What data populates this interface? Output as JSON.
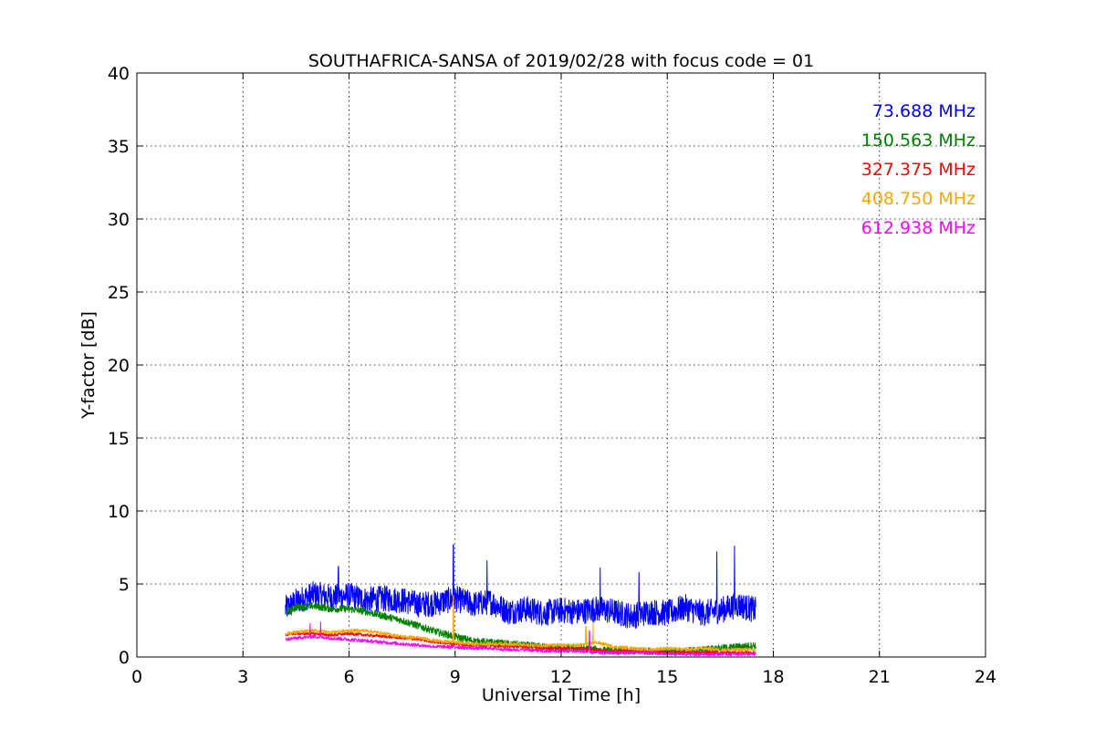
{
  "chart_data": {
    "type": "line",
    "title": "SOUTHAFRICA-SANSA of 2019/02/28 with focus code = 01",
    "xlabel": "Universal Time [h]",
    "ylabel": "Y-factor [dB]",
    "xlim": [
      0,
      24
    ],
    "ylim": [
      0,
      40
    ],
    "xticks": [
      0,
      3,
      6,
      9,
      12,
      15,
      18,
      21,
      24
    ],
    "yticks": [
      0,
      5,
      10,
      15,
      20,
      25,
      30,
      35,
      40
    ],
    "xtick_labels": [
      "0",
      "3",
      "6",
      "9",
      "12",
      "15",
      "18",
      "21",
      "24"
    ],
    "ytick_labels": [
      "0",
      "5",
      "10",
      "15",
      "20",
      "25",
      "30",
      "35",
      "40"
    ],
    "grid": true,
    "legend_placement": "top-right",
    "series": [
      {
        "name": "73.688 MHz",
        "color": "#0000ff",
        "x": [
          4.2,
          4.5,
          5.0,
          5.5,
          6.0,
          6.5,
          7.0,
          7.5,
          8.0,
          8.5,
          9.0,
          9.5,
          10.0,
          10.5,
          11.0,
          11.5,
          12.0,
          12.5,
          13.0,
          13.5,
          14.0,
          14.5,
          15.0,
          15.5,
          16.0,
          16.5,
          17.0,
          17.5
        ],
        "values": [
          3.3,
          3.8,
          4.3,
          4.1,
          4.2,
          3.9,
          4.0,
          3.9,
          3.6,
          3.7,
          4.0,
          3.6,
          3.8,
          3.1,
          3.3,
          3.0,
          3.2,
          3.1,
          3.3,
          3.1,
          2.8,
          3.1,
          3.0,
          3.4,
          3.0,
          3.2,
          3.6,
          3.2
        ],
        "noise": 0.9,
        "spikes": [
          [
            5.7,
            6.2
          ],
          [
            8.95,
            7.7
          ],
          [
            9.9,
            6.6
          ],
          [
            16.4,
            7.2
          ],
          [
            16.9,
            7.6
          ],
          [
            13.1,
            6.1
          ],
          [
            14.2,
            5.8
          ]
        ]
      },
      {
        "name": "150.563 MHz",
        "color": "#008000",
        "x": [
          4.2,
          4.5,
          5.0,
          5.5,
          6.0,
          6.5,
          7.0,
          7.5,
          8.0,
          8.5,
          9.0,
          9.5,
          10.0,
          10.5,
          11.0,
          11.5,
          12.0,
          12.5,
          13.0,
          13.5,
          14.0,
          14.5,
          15.0,
          15.5,
          16.0,
          16.5,
          17.0,
          17.5
        ],
        "values": [
          3.0,
          3.4,
          3.5,
          3.3,
          3.3,
          3.1,
          2.8,
          2.5,
          2.1,
          1.7,
          1.4,
          1.1,
          1.0,
          0.9,
          0.8,
          0.7,
          0.6,
          0.6,
          0.5,
          0.4,
          0.4,
          0.4,
          0.4,
          0.4,
          0.5,
          0.6,
          0.7,
          0.8
        ],
        "noise": 0.25,
        "spikes": []
      },
      {
        "name": "327.375 MHz",
        "color": "#ff0000",
        "x": [
          4.2,
          4.5,
          5.0,
          5.5,
          6.0,
          6.5,
          7.0,
          7.5,
          8.0,
          8.5,
          9.0,
          9.5,
          10.0,
          10.5,
          11.0,
          11.5,
          12.0,
          12.5,
          13.0,
          13.5,
          14.0,
          14.5,
          15.0,
          15.5,
          16.0,
          16.5,
          17.0,
          17.5
        ],
        "values": [
          1.5,
          1.6,
          1.6,
          1.5,
          1.6,
          1.5,
          1.4,
          1.3,
          1.2,
          1.0,
          0.9,
          0.8,
          0.8,
          0.7,
          0.7,
          0.6,
          0.6,
          0.6,
          0.5,
          0.4,
          0.4,
          0.4,
          0.3,
          0.3,
          0.3,
          0.3,
          0.3,
          0.3
        ],
        "noise": 0.1,
        "spikes": []
      },
      {
        "name": "408.750 MHz",
        "color": "#ffa500",
        "x": [
          4.2,
          4.5,
          5.0,
          5.5,
          6.0,
          6.5,
          7.0,
          7.5,
          8.0,
          8.5,
          9.0,
          9.5,
          10.0,
          10.5,
          11.0,
          11.5,
          12.0,
          12.5,
          13.0,
          13.5,
          14.0,
          14.5,
          15.0,
          15.5,
          16.0,
          16.5,
          17.0,
          17.5
        ],
        "values": [
          1.6,
          1.7,
          1.8,
          1.7,
          1.8,
          1.8,
          1.6,
          1.4,
          1.3,
          1.1,
          1.0,
          0.9,
          0.9,
          0.9,
          0.8,
          0.8,
          0.8,
          0.8,
          1.0,
          0.7,
          0.6,
          0.5,
          0.6,
          0.5,
          0.6,
          0.5,
          0.5,
          0.5
        ],
        "noise": 0.12,
        "spikes": [
          [
            8.95,
            4.2
          ],
          [
            12.7,
            2.1
          ],
          [
            12.9,
            2.3
          ]
        ]
      },
      {
        "name": "612.938 MHz",
        "color": "#ff00ff",
        "x": [
          4.2,
          4.5,
          5.0,
          5.5,
          6.0,
          6.5,
          7.0,
          7.5,
          8.0,
          8.5,
          9.0,
          9.5,
          10.0,
          10.5,
          11.0,
          11.5,
          12.0,
          12.5,
          13.0,
          13.5,
          14.0,
          14.5,
          15.0,
          15.5,
          16.0,
          16.5,
          17.0,
          17.5
        ],
        "values": [
          1.2,
          1.3,
          1.4,
          1.3,
          1.2,
          1.1,
          1.0,
          0.9,
          0.8,
          0.7,
          0.7,
          0.6,
          0.6,
          0.5,
          0.5,
          0.4,
          0.4,
          0.4,
          0.3,
          0.3,
          0.3,
          0.3,
          0.2,
          0.2,
          0.2,
          0.2,
          0.2,
          0.2
        ],
        "noise": 0.12,
        "spikes": [
          [
            4.9,
            2.3
          ],
          [
            5.2,
            2.4
          ],
          [
            12.8,
            1.8
          ]
        ]
      }
    ]
  }
}
